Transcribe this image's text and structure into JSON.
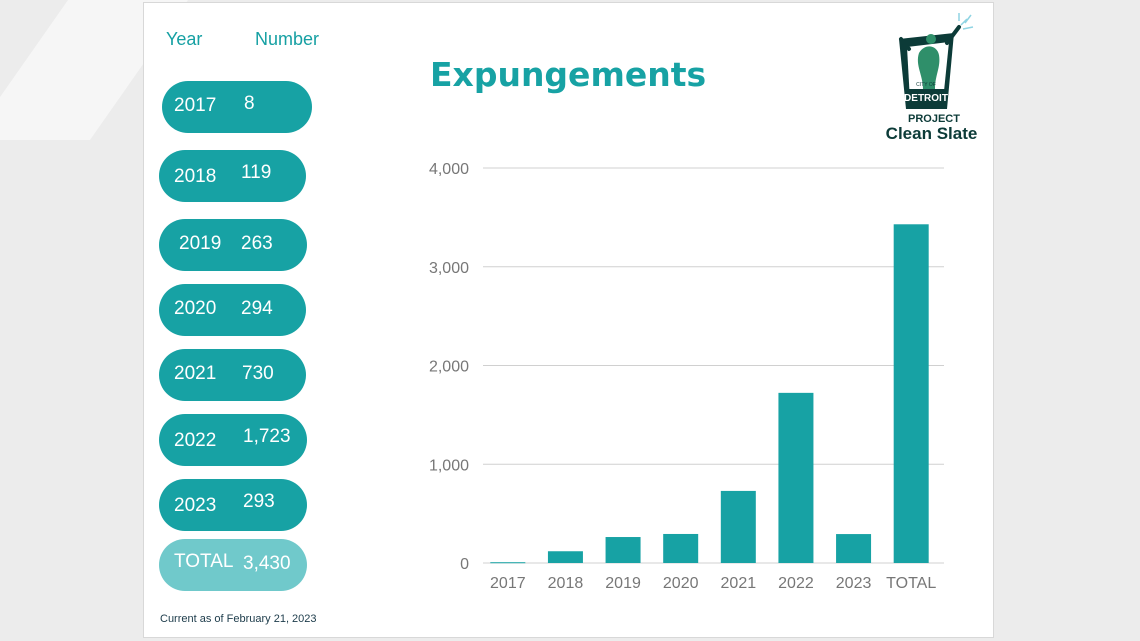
{
  "table": {
    "header_year": "Year",
    "header_number": "Number",
    "rows": [
      {
        "year": "2017",
        "number": "8"
      },
      {
        "year": "2018",
        "number": "119"
      },
      {
        "year": "2019",
        "number": "263"
      },
      {
        "year": "2020",
        "number": "294"
      },
      {
        "year": "2021",
        "number": "730"
      },
      {
        "year": "2022",
        "number": "1,723"
      },
      {
        "year": "2023",
        "number": "293"
      }
    ],
    "total": {
      "label": "TOTAL",
      "number": "3,430"
    }
  },
  "footnote": "Current as of February 21, 2023",
  "logo": {
    "city_of": "CITY OF",
    "detroit": "DETROIT",
    "project": "PROJECT",
    "clean_slate": "Clean Slate"
  },
  "colors": {
    "teal": "#17a2a4",
    "teal_light": "#70c9cb",
    "dark": "#0c3b38"
  },
  "chart_data": {
    "type": "bar",
    "title": "Expungements",
    "categories": [
      "2017",
      "2018",
      "2019",
      "2020",
      "2021",
      "2022",
      "2023",
      "TOTAL"
    ],
    "values": [
      8,
      119,
      263,
      294,
      730,
      1723,
      293,
      3430
    ],
    "ylim": [
      0,
      4000
    ],
    "yticks": [
      0,
      1000,
      2000,
      3000,
      4000
    ],
    "ytick_labels": [
      "0",
      "1,000",
      "2,000",
      "3,000",
      "4,000"
    ],
    "grid": true,
    "xlabel": "",
    "ylabel": ""
  }
}
